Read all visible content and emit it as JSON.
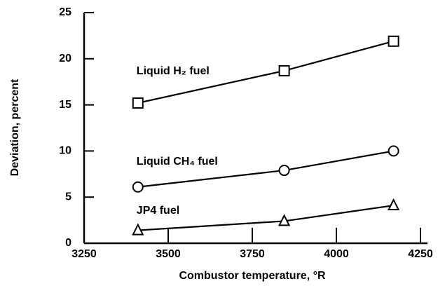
{
  "chart_data": {
    "type": "line",
    "x_label": "Combustor temperature, °R",
    "y_label": "Deviation, percent",
    "xlim": [
      3250,
      4250
    ],
    "xticks": [
      3250,
      3500,
      3750,
      4000,
      4250
    ],
    "ylim": [
      0,
      25
    ],
    "yticks": [
      0,
      5,
      10,
      15,
      20,
      25
    ],
    "grid": false,
    "series": [
      {
        "name": "Liquid H₂ fuel",
        "color": "#000000",
        "marker": "square",
        "x": [
          3410,
          3845,
          4170
        ],
        "values": [
          15.2,
          18.7,
          21.9
        ]
      },
      {
        "name": "Liquid CH₄ fuel",
        "color": "#000000",
        "marker": "circle",
        "x": [
          3410,
          3845,
          4170
        ],
        "values": [
          6.1,
          7.9,
          10.0
        ]
      },
      {
        "name": "JP4 fuel",
        "color": "#000000",
        "marker": "triangle",
        "x": [
          3410,
          3845,
          4170
        ],
        "values": [
          1.4,
          2.4,
          4.1
        ]
      }
    ]
  }
}
